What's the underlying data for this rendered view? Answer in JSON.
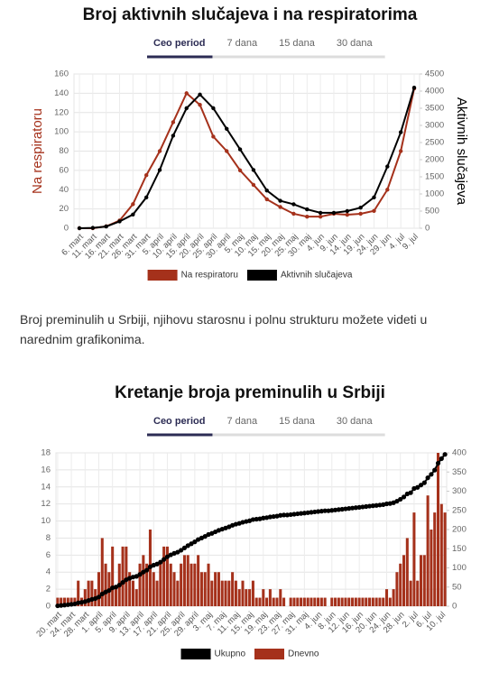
{
  "chart_data": [
    {
      "type": "line",
      "title": "Broj aktivnih slučajeva i na respiratorima",
      "tabs": [
        "Ceo period",
        "7 dana",
        "15 dana",
        "30 dana"
      ],
      "ylabel": "Na respiratoru",
      "y2label": "Aktivnih slučajeva",
      "categories": [
        "6. mart",
        "11. mart",
        "16. mart",
        "21. mart",
        "26. mart",
        "31. mart",
        "5. april",
        "10. april",
        "15. april",
        "20. april",
        "25. april",
        "30. april",
        "5. maj",
        "10. maj",
        "15. maj",
        "20. maj",
        "25. maj",
        "30. maj",
        "4. jun",
        "9. jun",
        "14. jun",
        "19. jun",
        "24. jun",
        "29. jun",
        "4. jul",
        "9. jul"
      ],
      "series": [
        {
          "name": "Na respiratoru",
          "color": "#a5311b",
          "type": "line",
          "values": [
            0,
            0,
            2,
            8,
            25,
            55,
            80,
            110,
            140,
            128,
            95,
            80,
            60,
            45,
            30,
            22,
            15,
            12,
            12,
            15,
            14,
            15,
            18,
            40,
            80,
            145
          ]
        },
        {
          "name": "Aktivnih slučajeva",
          "color": "#000000",
          "type": "line",
          "axis": "y2",
          "values": [
            0,
            10,
            50,
            200,
            400,
            900,
            1700,
            2700,
            3500,
            3900,
            3500,
            2900,
            2300,
            1700,
            1100,
            800,
            700,
            550,
            450,
            450,
            500,
            600,
            900,
            1800,
            2800,
            4100
          ]
        }
      ],
      "ylim": [
        0,
        160
      ],
      "yticks": [
        0,
        20,
        40,
        60,
        80,
        100,
        120,
        140,
        160
      ],
      "y2lim": [
        0,
        4500
      ],
      "y2ticks": [
        0,
        500,
        1000,
        1500,
        2000,
        2500,
        3000,
        3500,
        4000,
        4500
      ],
      "grid": true
    },
    {
      "type": "bar",
      "title": "Kretanje broja preminulih u Srbiji",
      "tabs": [
        "Ceo period",
        "7 dana",
        "15 dana",
        "30 dana"
      ],
      "categories": [
        "20. mart",
        null,
        null,
        null,
        "24. mart",
        null,
        null,
        null,
        "28. mart",
        null,
        null,
        null,
        "1. april",
        null,
        null,
        null,
        "5. april",
        null,
        null,
        null,
        "9. april",
        null,
        null,
        null,
        "13. april",
        null,
        null,
        null,
        "17. april",
        null,
        null,
        null,
        "21. april",
        null,
        null,
        null,
        "25. april",
        null,
        null,
        null,
        "29. april",
        null,
        null,
        null,
        "3. maj",
        null,
        null,
        null,
        "7. maj",
        null,
        null,
        null,
        "11. maj",
        null,
        null,
        null,
        "15. maj",
        null,
        null,
        null,
        "19. maj",
        null,
        null,
        null,
        "23. maj",
        null,
        null,
        null,
        "27. maj",
        null,
        null,
        null,
        "31. maj",
        null,
        null,
        null,
        "4. jun",
        null,
        null,
        null,
        "8. jun",
        null,
        null,
        null,
        "12. jun",
        null,
        null,
        null,
        "16. jun",
        null,
        null,
        null,
        "20. jun",
        null,
        null,
        null,
        "24. jun",
        null,
        null,
        null,
        "28. jun",
        null,
        null,
        null,
        "2. jul",
        null,
        null,
        null,
        "6. jul",
        null,
        null,
        null,
        "10. jul",
        null
      ],
      "series": [
        {
          "name": "Ukupno",
          "color": "#000000",
          "type": "line",
          "axis": "y2",
          "values": [
            1,
            2,
            3,
            4,
            5,
            6,
            9,
            10,
            12,
            15,
            18,
            20,
            24,
            32,
            37,
            41,
            48,
            50,
            55,
            62,
            69,
            73,
            76,
            78,
            83,
            89,
            94,
            103,
            107,
            110,
            115,
            122,
            129,
            134,
            138,
            141,
            146,
            152,
            158,
            163,
            168,
            174,
            178,
            182,
            187,
            190,
            194,
            198,
            201,
            204,
            207,
            211,
            214,
            216,
            219,
            221,
            223,
            226,
            227,
            228,
            230,
            231,
            233,
            234,
            235,
            237,
            238,
            238,
            239,
            240,
            241,
            242,
            243,
            244,
            245,
            246,
            247,
            248,
            249,
            249,
            250,
            251,
            252,
            253,
            254,
            255,
            256,
            257,
            258,
            259,
            260,
            261,
            262,
            263,
            264,
            265,
            267,
            268,
            270,
            274,
            279,
            285,
            293,
            296,
            307,
            310,
            316,
            322,
            335,
            344,
            355,
            373,
            385,
            396
          ]
        },
        {
          "name": "Dnevno",
          "color": "#a5311b",
          "type": "bar",
          "values": [
            1,
            1,
            1,
            1,
            1,
            1,
            3,
            1,
            2,
            3,
            3,
            2,
            4,
            8,
            5,
            4,
            7,
            2,
            5,
            7,
            7,
            4,
            3,
            2,
            5,
            6,
            5,
            9,
            4,
            3,
            5,
            7,
            7,
            5,
            4,
            3,
            5,
            6,
            6,
            5,
            5,
            6,
            4,
            4,
            5,
            3,
            4,
            4,
            3,
            3,
            3,
            4,
            3,
            2,
            3,
            2,
            2,
            3,
            1,
            1,
            2,
            1,
            2,
            1,
            1,
            2,
            1,
            0,
            1,
            1,
            1,
            1,
            1,
            1,
            1,
            1,
            1,
            1,
            1,
            0,
            1,
            1,
            1,
            1,
            1,
            1,
            1,
            1,
            1,
            1,
            1,
            1,
            1,
            1,
            1,
            1,
            2,
            1,
            2,
            4,
            5,
            6,
            8,
            3,
            11,
            3,
            6,
            6,
            13,
            9,
            11,
            18,
            12,
            11
          ]
        }
      ],
      "ylim": [
        0,
        18
      ],
      "yticks": [
        0,
        2,
        4,
        6,
        8,
        10,
        12,
        14,
        16,
        18
      ],
      "y2lim": [
        0,
        400
      ],
      "y2ticks": [
        0,
        50,
        100,
        150,
        200,
        250,
        300,
        350,
        400
      ],
      "grid": true
    }
  ],
  "paragraph": "Broj preminulih u Srbiji, njihovu starosnu i polnu strukturu možete videti u narednim grafikonima."
}
